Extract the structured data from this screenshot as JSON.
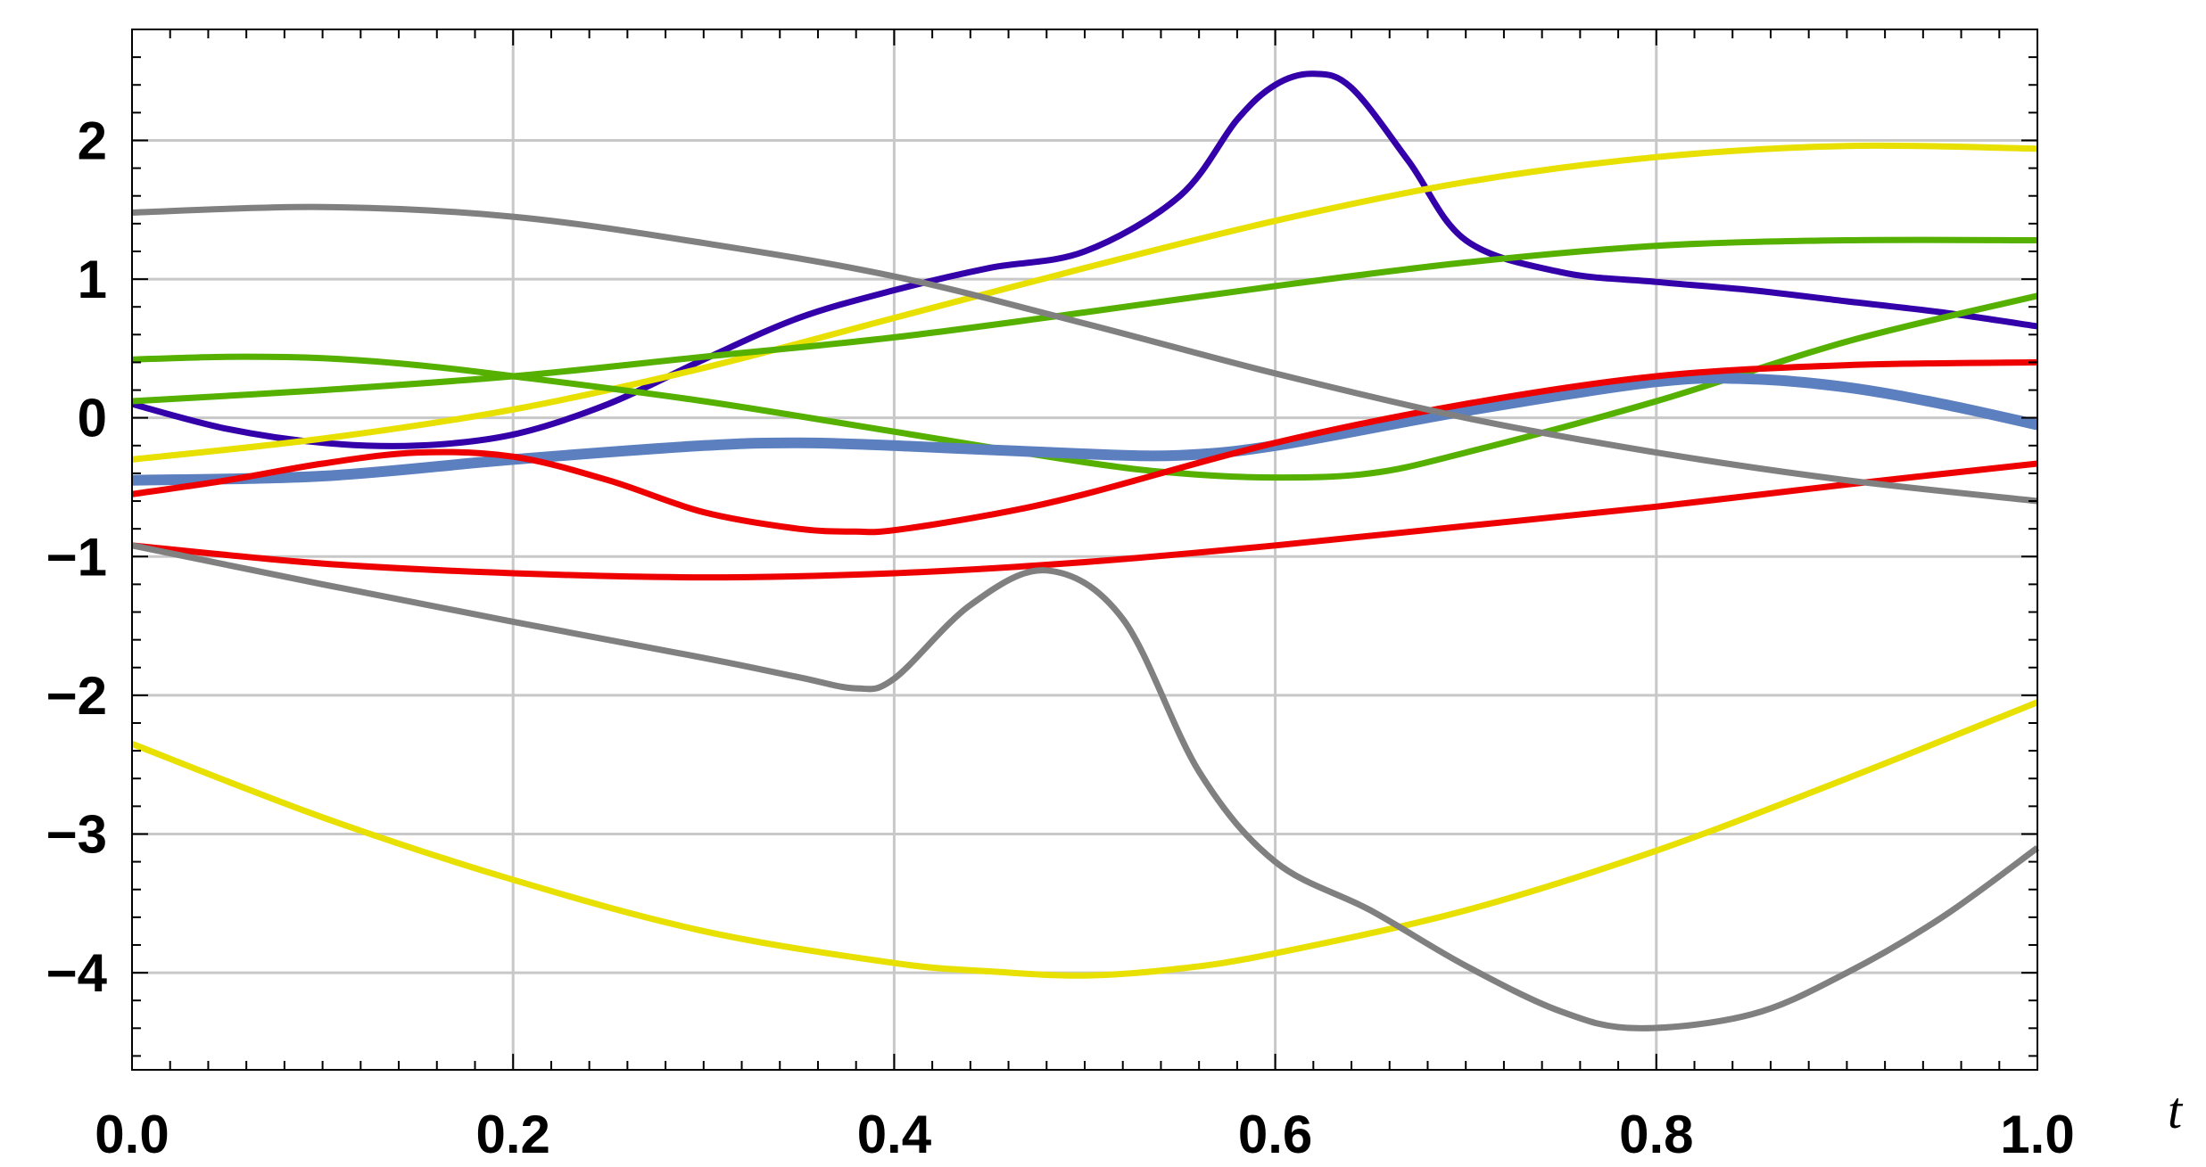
{
  "chart_data": {
    "type": "line",
    "xlabel": "t",
    "ylabel": "",
    "xlim": [
      0.0,
      1.0
    ],
    "ylim": [
      -4.7,
      2.8
    ],
    "grid": true,
    "legend": "none",
    "x_ticks": [
      "0.0",
      "0.2",
      "0.4",
      "0.6",
      "0.8",
      "1.0"
    ],
    "x_tick_values": [
      0.0,
      0.2,
      0.4,
      0.6,
      0.8,
      1.0
    ],
    "y_ticks": [
      "−4",
      "−3",
      "−2",
      "−1",
      "0",
      "1",
      "2"
    ],
    "y_tick_values": [
      -4,
      -3,
      -2,
      -1,
      0,
      1,
      2
    ],
    "series": [
      {
        "color": "#3300aa",
        "x": [
          0.0,
          0.05,
          0.1,
          0.15,
          0.2,
          0.25,
          0.3,
          0.35,
          0.4,
          0.45,
          0.5,
          0.55,
          0.58,
          0.6,
          0.62,
          0.64,
          0.67,
          0.7,
          0.75,
          0.8,
          0.85,
          0.9,
          0.95,
          1.0
        ],
        "y": [
          0.1,
          -0.08,
          -0.18,
          -0.2,
          -0.12,
          0.1,
          0.42,
          0.72,
          0.92,
          1.08,
          1.2,
          1.6,
          2.15,
          2.4,
          2.48,
          2.38,
          1.85,
          1.28,
          1.05,
          0.98,
          0.92,
          0.84,
          0.76,
          0.66
        ]
      },
      {
        "color": "#e8e000",
        "x": [
          0.0,
          0.1,
          0.2,
          0.3,
          0.4,
          0.5,
          0.6,
          0.7,
          0.8,
          0.9,
          1.0
        ],
        "y": [
          -0.3,
          -0.15,
          0.06,
          0.36,
          0.72,
          1.08,
          1.42,
          1.7,
          1.88,
          1.96,
          1.94
        ]
      },
      {
        "color": "#e8e000",
        "x": [
          0.0,
          0.1,
          0.2,
          0.3,
          0.4,
          0.45,
          0.5,
          0.55,
          0.6,
          0.7,
          0.8,
          0.9,
          1.0
        ],
        "y": [
          -2.35,
          -2.88,
          -3.33,
          -3.7,
          -3.93,
          -3.99,
          -4.02,
          -3.97,
          -3.86,
          -3.55,
          -3.12,
          -2.6,
          -2.05
        ]
      },
      {
        "color": "#55b000",
        "x": [
          0.0,
          0.1,
          0.2,
          0.3,
          0.4,
          0.5,
          0.6,
          0.7,
          0.8,
          0.9,
          1.0
        ],
        "y": [
          0.12,
          0.2,
          0.3,
          0.44,
          0.58,
          0.76,
          0.95,
          1.12,
          1.24,
          1.28,
          1.28
        ]
      },
      {
        "color": "#55b000",
        "x": [
          0.0,
          0.05,
          0.1,
          0.15,
          0.2,
          0.3,
          0.4,
          0.5,
          0.55,
          0.6,
          0.65,
          0.7,
          0.8,
          0.9,
          1.0
        ],
        "y": [
          0.42,
          0.44,
          0.43,
          0.38,
          0.3,
          0.12,
          -0.1,
          -0.32,
          -0.4,
          -0.43,
          -0.4,
          -0.25,
          0.12,
          0.55,
          0.88
        ]
      },
      {
        "color": "#5b7fbf",
        "x": [
          0.0,
          0.1,
          0.2,
          0.3,
          0.35,
          0.4,
          0.5,
          0.55,
          0.6,
          0.7,
          0.8,
          0.85,
          0.9,
          0.95,
          1.0
        ],
        "y": [
          -0.45,
          -0.42,
          -0.3,
          -0.2,
          -0.18,
          -0.2,
          -0.26,
          -0.27,
          -0.2,
          0.05,
          0.26,
          0.28,
          0.22,
          0.1,
          -0.05
        ]
      },
      {
        "color": "#ee0000",
        "x": [
          0.0,
          0.05,
          0.1,
          0.15,
          0.2,
          0.25,
          0.3,
          0.35,
          0.38,
          0.4,
          0.45,
          0.5,
          0.6,
          0.7,
          0.8,
          0.9,
          1.0
        ],
        "y": [
          -0.55,
          -0.45,
          -0.33,
          -0.25,
          -0.28,
          -0.45,
          -0.68,
          -0.8,
          -0.82,
          -0.81,
          -0.7,
          -0.55,
          -0.18,
          0.1,
          0.3,
          0.38,
          0.4
        ]
      },
      {
        "color": "#ee0000",
        "x": [
          0.0,
          0.1,
          0.2,
          0.3,
          0.4,
          0.5,
          0.6,
          0.7,
          0.8,
          0.9,
          1.0
        ],
        "y": [
          -0.92,
          -1.05,
          -1.12,
          -1.15,
          -1.12,
          -1.04,
          -0.92,
          -0.78,
          -0.64,
          -0.48,
          -0.33
        ]
      },
      {
        "color": "#808080",
        "x": [
          0.0,
          0.1,
          0.2,
          0.3,
          0.4,
          0.5,
          0.6,
          0.7,
          0.8,
          0.9,
          1.0
        ],
        "y": [
          1.48,
          1.52,
          1.45,
          1.26,
          1.02,
          0.68,
          0.32,
          0.0,
          -0.25,
          -0.45,
          -0.6
        ]
      },
      {
        "color": "#808080",
        "x": [
          0.0,
          0.1,
          0.2,
          0.3,
          0.35,
          0.38,
          0.4,
          0.44,
          0.48,
          0.52,
          0.56,
          0.6,
          0.65,
          0.7,
          0.75,
          0.79,
          0.85,
          0.9,
          0.95,
          1.0
        ],
        "y": [
          -0.92,
          -1.2,
          -1.47,
          -1.73,
          -1.87,
          -1.95,
          -1.88,
          -1.35,
          -1.1,
          -1.45,
          -2.55,
          -3.2,
          -3.55,
          -3.95,
          -4.28,
          -4.4,
          -4.3,
          -4.0,
          -3.6,
          -3.1
        ]
      }
    ]
  }
}
